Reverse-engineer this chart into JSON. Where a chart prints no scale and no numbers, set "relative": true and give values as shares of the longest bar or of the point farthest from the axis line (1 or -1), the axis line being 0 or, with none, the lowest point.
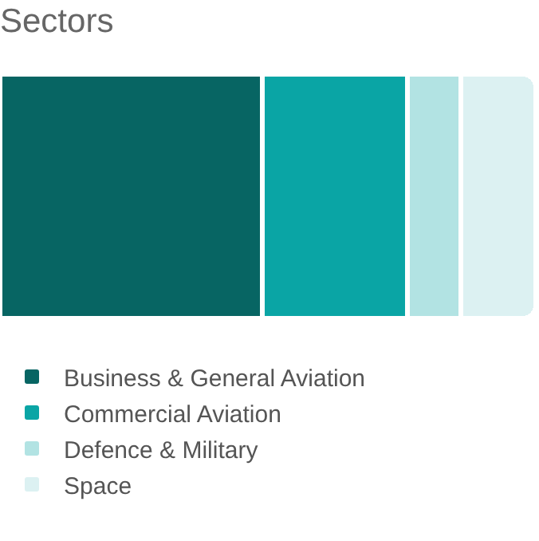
{
  "chart_data": {
    "type": "bar",
    "title": "Sectors",
    "orientation": "horizontal",
    "stacked": true,
    "relative": true,
    "legend": "bottom",
    "categories": [
      null
    ],
    "series": [
      {
        "name": "Business & General Aviation",
        "color": "#076563",
        "values": [
          0.49
        ]
      },
      {
        "name": "Commercial Aviation",
        "color": "#0aa5a5",
        "values": [
          0.27
        ]
      },
      {
        "name": "Defence & Military",
        "color": "#b2e3e3",
        "values": [
          0.1
        ]
      },
      {
        "name": "Space",
        "color": "#dcf1f2",
        "values": [
          0.14
        ]
      }
    ]
  }
}
